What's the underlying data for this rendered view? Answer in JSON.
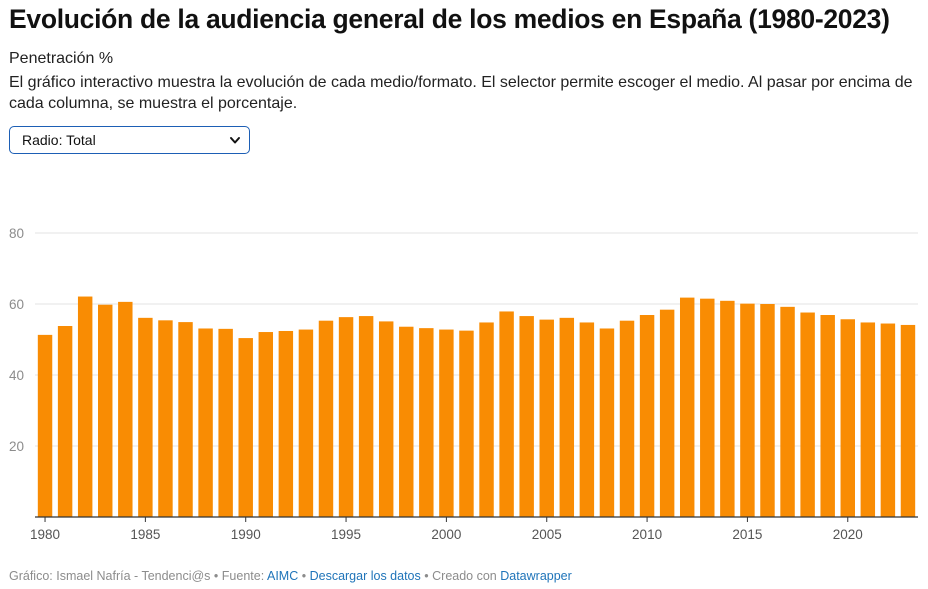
{
  "header": {
    "title": "Evolución de la audiencia general de los medios en España (1980-2023)",
    "subtitle": "Penetración %",
    "description": "El gráfico interactivo muestra la evolución de cada medio/formato. El selector permite escoger el medio. Al pasar por encima de cada columna, se muestra el porcentaje."
  },
  "selector": {
    "value": "Radio: Total",
    "icon": "chevron-down-icon"
  },
  "footer": {
    "credit": "Gráfico: Ismael Nafría - Tendenci@s",
    "source_label": "Fuente:",
    "source_link": "AIMC",
    "download_link": "Descargar los datos",
    "made_with_label": "Creado con",
    "made_with_link": "Datawrapper",
    "separator": "•"
  },
  "chart_data": {
    "type": "bar",
    "title": "",
    "xlabel": "",
    "ylabel": "",
    "ylim": [
      0,
      80
    ],
    "yticks": [
      20,
      40,
      60,
      80
    ],
    "xtick_labels": [
      "1980",
      "1985",
      "1990",
      "1995",
      "2000",
      "2005",
      "2010",
      "2015",
      "2020"
    ],
    "bar_color": "#f98c03",
    "grid": true,
    "categories": [
      1980,
      1981,
      1982,
      1983,
      1984,
      1985,
      1986,
      1987,
      1988,
      1989,
      1990,
      1991,
      1992,
      1993,
      1994,
      1995,
      1996,
      1997,
      1998,
      1999,
      2000,
      2001,
      2002,
      2003,
      2004,
      2005,
      2006,
      2007,
      2008,
      2009,
      2010,
      2011,
      2012,
      2013,
      2014,
      2015,
      2016,
      2017,
      2018,
      2019,
      2020,
      2021,
      2022,
      2023
    ],
    "values": [
      51.3,
      53.8,
      62.1,
      59.8,
      60.6,
      56.1,
      55.4,
      54.9,
      53.1,
      53.0,
      50.4,
      52.1,
      52.4,
      52.8,
      55.3,
      56.3,
      56.6,
      55.1,
      53.6,
      53.2,
      52.8,
      52.5,
      54.8,
      57.9,
      56.6,
      55.6,
      56.1,
      54.8,
      53.1,
      55.3,
      56.9,
      58.4,
      61.8,
      61.5,
      60.9,
      60.1,
      60.0,
      59.2,
      57.6,
      56.9,
      55.7,
      54.8,
      54.5,
      54.1
    ]
  }
}
